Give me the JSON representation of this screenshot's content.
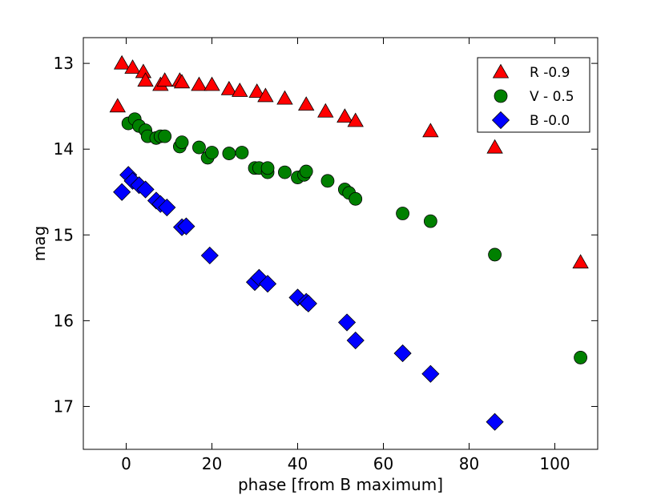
{
  "chart_data": {
    "type": "scatter",
    "title": "",
    "xlabel": "phase [from B maximum]",
    "ylabel": "mag",
    "xlim": [
      -10,
      110
    ],
    "ylim": [
      17.5,
      12.7
    ],
    "y_inverted": true,
    "grid": false,
    "legend_position": "top-right",
    "x_ticks": [
      0,
      20,
      40,
      60,
      80,
      100
    ],
    "y_ticks": [
      13,
      14,
      15,
      16,
      17
    ],
    "series": [
      {
        "name": "R -0.9",
        "marker": "triangle",
        "color": "#ff0000",
        "points": [
          {
            "x": -2,
            "y": 13.5
          },
          {
            "x": -1,
            "y": 13.0
          },
          {
            "x": 1.5,
            "y": 13.05
          },
          {
            "x": 4,
            "y": 13.1
          },
          {
            "x": 4.5,
            "y": 13.2
          },
          {
            "x": 8,
            "y": 13.25
          },
          {
            "x": 9,
            "y": 13.2
          },
          {
            "x": 12.5,
            "y": 13.2
          },
          {
            "x": 13,
            "y": 13.22
          },
          {
            "x": 17,
            "y": 13.25
          },
          {
            "x": 20,
            "y": 13.25
          },
          {
            "x": 24,
            "y": 13.3
          },
          {
            "x": 26.5,
            "y": 13.32
          },
          {
            "x": 30.5,
            "y": 13.33
          },
          {
            "x": 32.5,
            "y": 13.38
          },
          {
            "x": 37,
            "y": 13.41
          },
          {
            "x": 42,
            "y": 13.48
          },
          {
            "x": 46.5,
            "y": 13.56
          },
          {
            "x": 51,
            "y": 13.62
          },
          {
            "x": 53.5,
            "y": 13.67
          },
          {
            "x": 71,
            "y": 13.79
          },
          {
            "x": 86,
            "y": 13.98
          },
          {
            "x": 106,
            "y": 15.32
          }
        ]
      },
      {
        "name": "V - 0.5",
        "marker": "circle",
        "color": "#008000",
        "points": [
          {
            "x": 0.5,
            "y": 13.7
          },
          {
            "x": 2,
            "y": 13.65
          },
          {
            "x": 3,
            "y": 13.73
          },
          {
            "x": 4.5,
            "y": 13.78
          },
          {
            "x": 5,
            "y": 13.85
          },
          {
            "x": 7,
            "y": 13.87
          },
          {
            "x": 8,
            "y": 13.85
          },
          {
            "x": 9,
            "y": 13.85
          },
          {
            "x": 12.5,
            "y": 13.97
          },
          {
            "x": 13,
            "y": 13.92
          },
          {
            "x": 17,
            "y": 13.98
          },
          {
            "x": 19,
            "y": 14.1
          },
          {
            "x": 20,
            "y": 14.04
          },
          {
            "x": 24,
            "y": 14.05
          },
          {
            "x": 27,
            "y": 14.04
          },
          {
            "x": 30,
            "y": 14.22
          },
          {
            "x": 31,
            "y": 14.22
          },
          {
            "x": 33,
            "y": 14.27
          },
          {
            "x": 33,
            "y": 14.22
          },
          {
            "x": 37,
            "y": 14.27
          },
          {
            "x": 40,
            "y": 14.33
          },
          {
            "x": 41.5,
            "y": 14.3
          },
          {
            "x": 42,
            "y": 14.26
          },
          {
            "x": 47,
            "y": 14.37
          },
          {
            "x": 51,
            "y": 14.47
          },
          {
            "x": 52,
            "y": 14.51
          },
          {
            "x": 53.5,
            "y": 14.58
          },
          {
            "x": 64.5,
            "y": 14.75
          },
          {
            "x": 71,
            "y": 14.84
          },
          {
            "x": 86,
            "y": 15.23
          },
          {
            "x": 106,
            "y": 16.43
          }
        ]
      },
      {
        "name": "B -0.0",
        "marker": "diamond",
        "color": "#0000ff",
        "points": [
          {
            "x": -1,
            "y": 14.5
          },
          {
            "x": 0.5,
            "y": 14.3
          },
          {
            "x": 1.5,
            "y": 14.37
          },
          {
            "x": 3,
            "y": 14.42
          },
          {
            "x": 4.5,
            "y": 14.47
          },
          {
            "x": 7,
            "y": 14.6
          },
          {
            "x": 8,
            "y": 14.64
          },
          {
            "x": 9.5,
            "y": 14.68
          },
          {
            "x": 13,
            "y": 14.91
          },
          {
            "x": 14,
            "y": 14.9
          },
          {
            "x": 19.5,
            "y": 15.24
          },
          {
            "x": 30,
            "y": 15.55
          },
          {
            "x": 31,
            "y": 15.5
          },
          {
            "x": 33,
            "y": 15.57
          },
          {
            "x": 40,
            "y": 15.73
          },
          {
            "x": 42,
            "y": 15.78
          },
          {
            "x": 42.5,
            "y": 15.8
          },
          {
            "x": 51.5,
            "y": 16.02
          },
          {
            "x": 53.5,
            "y": 16.23
          },
          {
            "x": 64.5,
            "y": 16.38
          },
          {
            "x": 71,
            "y": 16.62
          },
          {
            "x": 86,
            "y": 17.18
          }
        ]
      }
    ]
  }
}
